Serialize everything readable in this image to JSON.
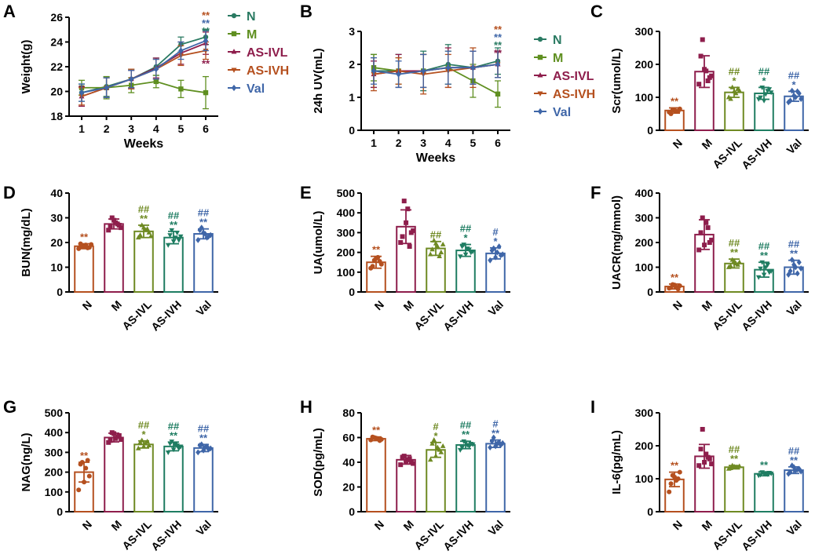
{
  "colors": {
    "N": "#b5501f",
    "M": "#8e1e4c",
    "AS-IVL": "#6f8a23",
    "AS-IVH": "#1f7d62",
    "Val": "#3f66a8",
    "line_N": "#2a7a62",
    "line_M": "#5f8f20",
    "line_ASIVL": "#8e1e4c",
    "line_ASIVH": "#b5501f",
    "line_Val": "#3f66a8",
    "axis": "#000000"
  },
  "chart_data": [
    {
      "panel": "A",
      "type": "line",
      "ylabel": "Weight(g)",
      "xlabel": "Weeks",
      "x": [
        1,
        2,
        3,
        4,
        5,
        6
      ],
      "xticks": [
        "1",
        "2",
        "3",
        "4",
        "5",
        "6"
      ],
      "ylim": [
        18,
        26
      ],
      "yticks": [
        "18",
        "20",
        "22",
        "24",
        "26"
      ],
      "series": [
        {
          "name": "N",
          "values": [
            19.9,
            20.4,
            21.0,
            22.0,
            23.8,
            24.4
          ],
          "err": [
            0.7,
            0.8,
            0.8,
            0.7,
            0.6,
            0.6
          ],
          "marker": "circle"
        },
        {
          "name": "M",
          "values": [
            20.3,
            20.3,
            20.5,
            20.8,
            20.2,
            19.9
          ],
          "err": [
            0.6,
            0.9,
            0.6,
            0.5,
            0.7,
            1.3
          ],
          "marker": "square"
        },
        {
          "name": "AS-IVL",
          "values": [
            19.6,
            20.3,
            21.0,
            21.9,
            23.1,
            23.9
          ],
          "err": [
            0.8,
            0.8,
            0.7,
            0.8,
            0.9,
            0.9
          ],
          "marker": "tri-up"
        },
        {
          "name": "AS-IVH",
          "values": [
            19.6,
            20.3,
            21.0,
            21.8,
            22.9,
            23.3
          ],
          "err": [
            0.7,
            0.8,
            0.8,
            0.8,
            0.8,
            0.7
          ],
          "marker": "tri-down"
        },
        {
          "name": "Val",
          "values": [
            19.9,
            20.3,
            21.0,
            21.8,
            23.3,
            24.1
          ],
          "err": [
            0.7,
            0.8,
            0.7,
            0.8,
            0.7,
            0.8
          ],
          "marker": "diamond"
        }
      ],
      "legend": [
        "N",
        "M",
        "AS-IVL",
        "AS-IVH",
        "Val"
      ],
      "annotations": [
        {
          "text": "**",
          "series": "AS-IVH",
          "pos": "top1"
        },
        {
          "text": "**",
          "series": "Val",
          "pos": "top2"
        },
        {
          "text": "**",
          "series": "N",
          "pos": "top3"
        },
        {
          "text": "**",
          "series": "AS-IVL",
          "pos": "below"
        }
      ]
    },
    {
      "panel": "B",
      "type": "line",
      "ylabel": "24h UV(mL)",
      "xlabel": "Weeks",
      "x": [
        1,
        2,
        3,
        4,
        5,
        6
      ],
      "xticks": [
        "1",
        "2",
        "3",
        "4",
        "5",
        "6"
      ],
      "ylim": [
        0,
        3
      ],
      "yticks": [
        "0",
        "1",
        "2",
        "3"
      ],
      "series": [
        {
          "name": "N",
          "values": [
            1.8,
            1.8,
            1.8,
            2.0,
            1.9,
            2.1
          ],
          "err": [
            0.5,
            0.5,
            0.6,
            0.6,
            0.5,
            0.4
          ],
          "marker": "circle"
        },
        {
          "name": "M",
          "values": [
            1.9,
            1.8,
            1.8,
            1.9,
            1.5,
            1.1
          ],
          "err": [
            0.4,
            0.4,
            0.5,
            0.5,
            0.5,
            0.4
          ],
          "marker": "square"
        },
        {
          "name": "AS-IVL",
          "values": [
            1.7,
            1.8,
            1.8,
            1.9,
            1.9,
            2.0
          ],
          "err": [
            0.4,
            0.5,
            0.5,
            0.6,
            0.5,
            0.4
          ],
          "marker": "tri-up"
        },
        {
          "name": "AS-IVH",
          "values": [
            1.7,
            1.8,
            1.7,
            1.8,
            1.9,
            2.0
          ],
          "err": [
            0.5,
            0.4,
            0.6,
            0.5,
            0.6,
            0.4
          ],
          "marker": "tri-down"
        },
        {
          "name": "Val",
          "values": [
            1.8,
            1.7,
            1.8,
            1.9,
            1.9,
            2.0
          ],
          "err": [
            0.4,
            0.4,
            0.5,
            0.5,
            0.5,
            0.4
          ],
          "marker": "diamond"
        }
      ],
      "legend": [
        "N",
        "M",
        "AS-IVL",
        "AS-IVH",
        "Val"
      ],
      "annotations": [
        {
          "text": "**",
          "series": "AS-IVH",
          "pos": "top1"
        },
        {
          "text": "**",
          "series": "Val",
          "pos": "top2"
        },
        {
          "text": "**",
          "series": "N",
          "pos": "top3"
        },
        {
          "text": "**",
          "series": "AS-IVL",
          "pos": "top4"
        }
      ]
    },
    {
      "panel": "C",
      "type": "bar",
      "ylabel": "Scr(umol/L)",
      "categories": [
        "N",
        "M",
        "AS-IVL",
        "AS-IVH",
        "Val"
      ],
      "values": [
        60,
        178,
        115,
        112,
        103
      ],
      "err": [
        8,
        48,
        15,
        18,
        15
      ],
      "ylim": [
        0,
        300
      ],
      "yticks": [
        "0",
        "100",
        "200",
        "300"
      ],
      "points": [
        [
          55,
          62,
          58,
          65,
          50,
          60,
          57
        ],
        [
          140,
          275,
          180,
          160,
          225,
          185,
          150,
          165
        ],
        [
          100,
          130,
          112,
          120,
          95,
          118,
          125
        ],
        [
          95,
          130,
          110,
          125,
          100,
          90,
          120,
          115
        ],
        [
          85,
          120,
          100,
          112,
          90,
          105,
          118,
          95
        ]
      ],
      "sig": [
        [
          "**"
        ],
        [],
        [
          "##",
          "*"
        ],
        [
          "##",
          "*"
        ],
        [
          "##",
          "*"
        ]
      ]
    },
    {
      "panel": "D",
      "type": "bar",
      "ylabel": "BUN(mg/dL)",
      "categories": [
        "N",
        "M",
        "AS-IVL",
        "AS-IVH",
        "Val"
      ],
      "values": [
        18.5,
        27.5,
        24.5,
        22.0,
        23.5
      ],
      "err": [
        1.0,
        2.0,
        2.5,
        2.5,
        2.0
      ],
      "ylim": [
        0,
        40
      ],
      "yticks": [
        "0",
        "10",
        "20",
        "30",
        "40"
      ],
      "points": [
        [
          17.5,
          18.5,
          19,
          18,
          19.5,
          18.2,
          17.8,
          19.2
        ],
        [
          25,
          30,
          28,
          27,
          26.5,
          29,
          27.5,
          26
        ],
        [
          22,
          27,
          25,
          24,
          23,
          26,
          25.5,
          22.5
        ],
        [
          19,
          25,
          22,
          21,
          23,
          20.5,
          24,
          22.5
        ],
        [
          21,
          26,
          23.5,
          22.5,
          25,
          24,
          22,
          23
        ]
      ],
      "sig": [
        [
          "**"
        ],
        [],
        [
          "##",
          "**"
        ],
        [
          "##",
          "**"
        ],
        [
          "##",
          "**"
        ]
      ]
    },
    {
      "panel": "E",
      "type": "bar",
      "ylabel": "UA(umol/L)",
      "categories": [
        "N",
        "M",
        "AS-IVL",
        "AS-IVH",
        "Val"
      ],
      "values": [
        150,
        330,
        220,
        210,
        195
      ],
      "err": [
        30,
        85,
        35,
        30,
        28
      ],
      "ylim": [
        0,
        500
      ],
      "yticks": [
        "0",
        "100",
        "200",
        "300",
        "400",
        "500"
      ],
      "points": [
        [
          120,
          160,
          175,
          140,
          130,
          170,
          155
        ],
        [
          250,
          460,
          420,
          300,
          280,
          350,
          230,
          310
        ],
        [
          190,
          260,
          230,
          200,
          215,
          245,
          180,
          240
        ],
        [
          180,
          240,
          220,
          200,
          230,
          190,
          215,
          205
        ],
        [
          160,
          220,
          200,
          185,
          210,
          175,
          230,
          190
        ]
      ],
      "sig": [
        [
          "**"
        ],
        [],
        [
          "##"
        ],
        [
          "##",
          "*"
        ],
        [
          "#",
          "*"
        ]
      ]
    },
    {
      "panel": "F",
      "type": "bar",
      "ylabel": "UACR(mg/mmol)",
      "categories": [
        "N",
        "M",
        "AS-IVL",
        "AS-IVH",
        "Val"
      ],
      "values": [
        22,
        232,
        115,
        90,
        100
      ],
      "err": [
        10,
        60,
        18,
        30,
        28
      ],
      "ylim": [
        0,
        400
      ],
      "yticks": [
        "0",
        "100",
        "200",
        "300",
        "400"
      ],
      "points": [
        [
          15,
          30,
          20,
          25,
          18,
          28,
          12
        ],
        [
          170,
          300,
          280,
          200,
          240,
          190,
          260,
          210
        ],
        [
          100,
          130,
          115,
          120,
          105,
          125,
          110
        ],
        [
          60,
          120,
          100,
          80,
          95,
          70,
          110,
          85
        ],
        [
          70,
          130,
          100,
          120,
          85,
          110,
          75,
          95
        ]
      ],
      "sig": [
        [
          "**"
        ],
        [],
        [
          "##",
          "**"
        ],
        [
          "##",
          "**"
        ],
        [
          "##",
          "**"
        ]
      ]
    },
    {
      "panel": "G",
      "type": "bar",
      "ylabel": "NAG(ng/L)",
      "categories": [
        "N",
        "M",
        "AS-IVL",
        "AS-IVH",
        "Val"
      ],
      "values": [
        200,
        375,
        340,
        330,
        322
      ],
      "err": [
        50,
        22,
        18,
        22,
        18
      ],
      "ylim": [
        0,
        500
      ],
      "yticks": [
        "0",
        "100",
        "200",
        "300",
        "400",
        "500"
      ],
      "points": [
        [
          110,
          250,
          220,
          180,
          240,
          150,
          260
        ],
        [
          350,
          400,
          370,
          385,
          360,
          395,
          380,
          365
        ],
        [
          320,
          360,
          345,
          335,
          350,
          330,
          355
        ],
        [
          300,
          355,
          340,
          320,
          345,
          315,
          335,
          330
        ],
        [
          300,
          340,
          325,
          315,
          335,
          310,
          330,
          320
        ]
      ],
      "sig": [
        [
          "**"
        ],
        [],
        [
          "##",
          "*"
        ],
        [
          "##",
          "**"
        ],
        [
          "##",
          "**"
        ]
      ]
    },
    {
      "panel": "H",
      "type": "bar",
      "ylabel": "SOD(pg/mL)",
      "categories": [
        "N",
        "M",
        "AS-IVL",
        "AS-IVH",
        "Val"
      ],
      "values": [
        59,
        42,
        50,
        54,
        55
      ],
      "err": [
        1.5,
        3.5,
        6,
        3,
        3
      ],
      "ylim": [
        0,
        80
      ],
      "yticks": [
        "0",
        "20",
        "40",
        "60",
        "80"
      ],
      "points": [
        [
          58,
          60,
          59,
          58.5,
          60.5,
          59.5,
          57.5
        ],
        [
          38,
          45,
          42,
          40,
          44,
          41,
          43,
          39
        ],
        [
          42,
          58,
          52,
          48,
          55,
          45,
          50,
          53
        ],
        [
          50,
          57,
          54,
          55,
          52,
          56,
          53,
          54.5
        ],
        [
          52,
          60,
          55,
          54,
          57,
          53,
          56,
          55.5
        ]
      ],
      "sig": [
        [
          "**"
        ],
        [],
        [
          "#",
          "*"
        ],
        [
          "##",
          "**"
        ],
        [
          "#",
          "**"
        ]
      ]
    },
    {
      "panel": "I",
      "type": "bar",
      "ylabel": "IL-6(pg/mL)",
      "categories": [
        "N",
        "M",
        "AS-IVL",
        "AS-IVH",
        "Val"
      ],
      "values": [
        98,
        168,
        135,
        115,
        126
      ],
      "err": [
        22,
        36,
        5,
        6,
        10
      ],
      "ylim": [
        0,
        300
      ],
      "yticks": [
        "0",
        "100",
        "200",
        "300"
      ],
      "points": [
        [
          60,
          110,
          95,
          120,
          85,
          105,
          100
        ],
        [
          140,
          250,
          175,
          160,
          190,
          150,
          165,
          145
        ],
        [
          130,
          140,
          135,
          138,
          132,
          137,
          134
        ],
        [
          110,
          120,
          115,
          118,
          112,
          117,
          114,
          116
        ],
        [
          115,
          140,
          125,
          130,
          120,
          135,
          128,
          122
        ]
      ],
      "sig": [
        [
          "**"
        ],
        [],
        [
          "##",
          "**"
        ],
        [
          "**"
        ],
        [
          "##",
          "**"
        ]
      ]
    }
  ]
}
